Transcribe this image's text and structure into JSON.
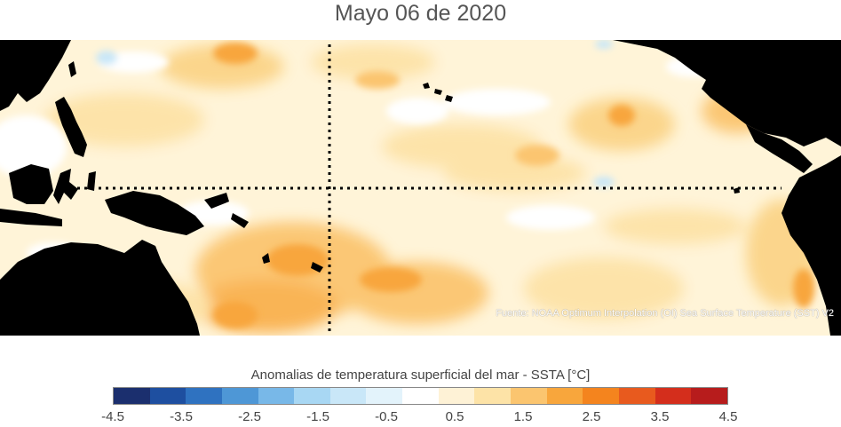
{
  "title": "Mayo 06 de 2020",
  "map": {
    "region": "Tropical Pacific Ocean",
    "land_color": "#000000",
    "reference_lines": [
      "equator",
      "date-line"
    ],
    "reference_line_style": "dotted"
  },
  "source_note": "Fuente: NOAA Optimum Interpolation (OI) Sea Surface Temperature (SST) V2",
  "colorbar": {
    "title": "Anomalias de temperatura superficial del mar - SSTA  [°C]",
    "colors": [
      "#1b2f6e",
      "#1e4fa0",
      "#2f72c0",
      "#4e97d6",
      "#78b8e8",
      "#a8d7f3",
      "#c9e7f8",
      "#e3f3fb",
      "#ffffff",
      "#fef2d6",
      "#fde3a7",
      "#fbc56f",
      "#f8a63c",
      "#f4841e",
      "#e85a1e",
      "#d42e1c",
      "#b71c1c"
    ],
    "min": -4.5,
    "max": 4.5,
    "tick_labels": [
      "-4.5",
      "-3.5",
      "-2.5",
      "-1.5",
      "-0.5",
      "0.5",
      "1.5",
      "2.5",
      "3.5",
      "4.5"
    ],
    "tick_values": [
      -4.5,
      -3.5,
      -2.5,
      -1.5,
      -0.5,
      0.5,
      1.5,
      2.5,
      3.5,
      4.5
    ]
  }
}
